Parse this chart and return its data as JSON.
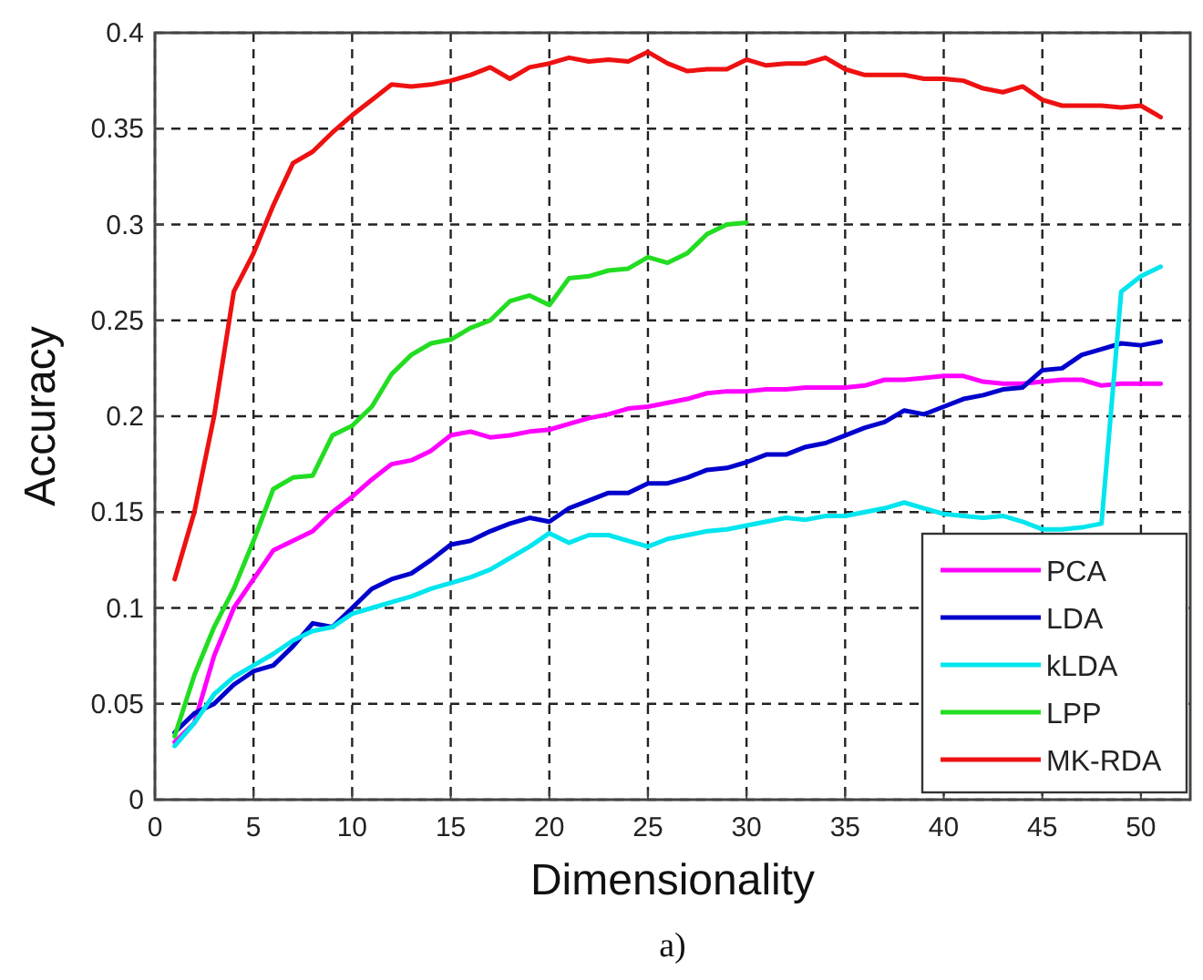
{
  "chart_data": {
    "type": "line",
    "xlabel": "Dimensionality",
    "ylabel": "Accuracy",
    "annotations": [
      "a)"
    ],
    "x": [
      1,
      2,
      3,
      4,
      5,
      6,
      7,
      8,
      9,
      10,
      11,
      12,
      13,
      14,
      15,
      16,
      17,
      18,
      19,
      20,
      21,
      22,
      23,
      24,
      25,
      26,
      27,
      28,
      29,
      30,
      31,
      32,
      33,
      34,
      35,
      36,
      37,
      38,
      39,
      40,
      41,
      42,
      43,
      44,
      45,
      46,
      47,
      48,
      49,
      50,
      51
    ],
    "xlim": [
      0,
      52.5
    ],
    "xticks": [
      0,
      5,
      10,
      15,
      20,
      25,
      30,
      35,
      40,
      45,
      50
    ],
    "ylim": [
      0,
      0.4
    ],
    "yticks": [
      0,
      0.05,
      0.1,
      0.15,
      0.2,
      0.25,
      0.3,
      0.35,
      0.4
    ],
    "grid": true,
    "legend": "bottom right",
    "line_style": "solid",
    "series": [
      {
        "name": "PCA",
        "color": "#ff00ff",
        "values": [
          0.03,
          0.04,
          0.075,
          0.1,
          0.115,
          0.13,
          0.135,
          0.14,
          0.15,
          0.158,
          0.167,
          0.175,
          0.177,
          0.182,
          0.19,
          0.192,
          0.189,
          0.19,
          0.192,
          0.193,
          0.196,
          0.199,
          0.201,
          0.204,
          0.205,
          0.207,
          0.209,
          0.212,
          0.213,
          0.213,
          0.214,
          0.214,
          0.215,
          0.215,
          0.215,
          0.216,
          0.219,
          0.219,
          0.22,
          0.221,
          0.221,
          0.218,
          0.217,
          0.217,
          0.218,
          0.219,
          0.219,
          0.216,
          0.217,
          0.217,
          0.217
        ]
      },
      {
        "name": "LDA",
        "color": "#0000cc",
        "values": [
          0.035,
          0.045,
          0.05,
          0.06,
          0.067,
          0.07,
          0.08,
          0.092,
          0.09,
          0.1,
          0.11,
          0.115,
          0.118,
          0.125,
          0.133,
          0.135,
          0.14,
          0.144,
          0.147,
          0.145,
          0.152,
          0.156,
          0.16,
          0.16,
          0.165,
          0.165,
          0.168,
          0.172,
          0.173,
          0.176,
          0.18,
          0.18,
          0.184,
          0.186,
          0.19,
          0.194,
          0.197,
          0.203,
          0.201,
          0.205,
          0.209,
          0.211,
          0.214,
          0.215,
          0.224,
          0.225,
          0.232,
          0.235,
          0.238,
          0.237,
          0.239
        ]
      },
      {
        "name": "kLDA",
        "color": "#00e5ee",
        "values": [
          0.028,
          0.04,
          0.055,
          0.064,
          0.07,
          0.076,
          0.083,
          0.088,
          0.09,
          0.097,
          0.1,
          0.103,
          0.106,
          0.11,
          0.113,
          0.116,
          0.12,
          0.126,
          0.132,
          0.139,
          0.134,
          0.138,
          0.138,
          0.135,
          0.132,
          0.136,
          0.138,
          0.14,
          0.141,
          0.143,
          0.145,
          0.147,
          0.146,
          0.148,
          0.148,
          0.15,
          0.152,
          0.155,
          0.152,
          0.149,
          0.148,
          0.147,
          0.148,
          0.145,
          0.141,
          0.141,
          0.142,
          0.144,
          0.265,
          0.273,
          0.278
        ]
      },
      {
        "name": "LPP",
        "color": "#22dd22",
        "values": [
          0.033,
          0.065,
          0.09,
          0.11,
          0.135,
          0.162,
          0.168,
          0.169,
          0.19,
          0.195,
          0.205,
          0.222,
          0.232,
          0.238,
          0.24,
          0.246,
          0.25,
          0.26,
          0.263,
          0.258,
          0.272,
          0.273,
          0.276,
          0.277,
          0.283,
          0.28,
          0.285,
          0.295,
          0.3,
          0.301,
          null,
          null,
          null,
          null,
          null,
          null,
          null,
          null,
          null,
          null,
          null,
          null,
          null,
          null,
          null,
          null,
          null,
          null,
          null,
          null,
          null
        ]
      },
      {
        "name": "MK-RDA",
        "color": "#ee1111",
        "values": [
          0.115,
          0.15,
          0.2,
          0.265,
          0.285,
          0.31,
          0.332,
          0.338,
          0.348,
          0.357,
          0.365,
          0.373,
          0.372,
          0.373,
          0.375,
          0.378,
          0.382,
          0.376,
          0.382,
          0.384,
          0.387,
          0.385,
          0.386,
          0.385,
          0.39,
          0.384,
          0.38,
          0.381,
          0.381,
          0.386,
          0.383,
          0.384,
          0.384,
          0.387,
          0.381,
          0.378,
          0.378,
          0.378,
          0.376,
          0.376,
          0.375,
          0.371,
          0.369,
          0.372,
          0.365,
          0.362,
          0.362,
          0.362,
          0.361,
          0.362,
          0.356
        ]
      }
    ]
  }
}
